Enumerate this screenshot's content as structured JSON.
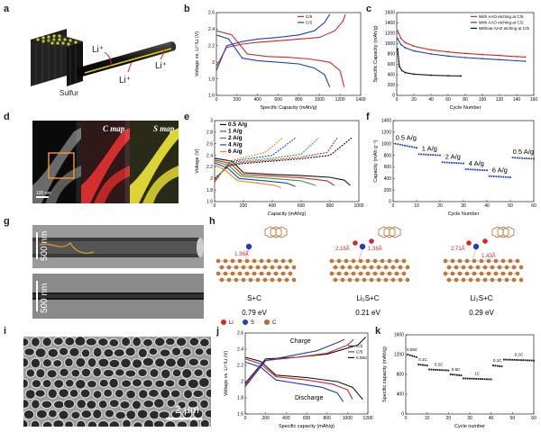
{
  "panel_letters": {
    "a": "a",
    "b": "b",
    "c": "c",
    "d": "d",
    "e": "e",
    "f": "f",
    "g": "g",
    "h": "h",
    "i": "i",
    "j": "j",
    "k": "k"
  },
  "colors": {
    "red": "#d62728",
    "blue": "#1f3fbf",
    "black": "#111111",
    "green": "#2ca02c",
    "orange": "#ff7f0e",
    "magenta": "#d62ad6",
    "brown": "#b46b2a"
  },
  "panel_a": {
    "labels": [
      "Li⁺",
      "Li⁺",
      "Li⁺",
      "Sulfur"
    ]
  },
  "panel_d": {
    "labels": [
      "C map",
      "S map"
    ],
    "scale": "100 nm"
  },
  "panel_g": {
    "scale_top": "500 nm",
    "scale_bottom": "500 nm"
  },
  "panel_h": {
    "structures": [
      {
        "name": "S+C",
        "energy": "0.79 eV",
        "bond": "",
        "bond2": ""
      },
      {
        "name": "Li₂S+C",
        "energy": "0.21 eV",
        "bond": "2.16Å",
        "bond2": "1.38Å"
      },
      {
        "name": "Li₂S+C",
        "energy": "0.29 eV",
        "bond": "2.71Å",
        "bond2": "1.43Å"
      }
    ],
    "legend": [
      "Li",
      "S",
      "C"
    ],
    "first_bond": "1.36Å"
  },
  "panel_i": {
    "scale": "2 µm"
  },
  "chart_data": [
    {
      "id": "b",
      "type": "line",
      "xlabel": "Specific Capacity (mAh/g)",
      "ylabel": "Voltage vs. Li⁺/Li (V)",
      "xlim": [
        0,
        1400
      ],
      "ylim": [
        1.6,
        2.6
      ],
      "xticks": [
        0,
        200,
        400,
        600,
        800,
        1000,
        1200,
        1400
      ],
      "yticks": [
        1.6,
        1.8,
        2.0,
        2.2,
        2.4,
        2.6
      ],
      "legend": [
        "C/5",
        "C/2"
      ],
      "series": [
        {
          "name": "C/5",
          "color": "#d62728",
          "x": [
            0,
            150,
            300,
            500,
            700,
            900,
            1100,
            1200,
            1240
          ],
          "y": [
            2.38,
            2.33,
            2.1,
            2.07,
            2.06,
            2.04,
            2.0,
            1.9,
            1.7
          ]
        },
        {
          "name": "C/5",
          "color": "#d62728",
          "x": [
            0,
            100,
            250,
            400,
            600,
            800,
            1000,
            1150,
            1230,
            1250
          ],
          "y": [
            1.95,
            2.18,
            2.22,
            2.24,
            2.26,
            2.28,
            2.3,
            2.38,
            2.5,
            2.58
          ]
        },
        {
          "name": "C/2",
          "color": "#1f3fbf",
          "x": [
            0,
            120,
            250,
            400,
            600,
            800,
            950,
            1050,
            1100
          ],
          "y": [
            2.33,
            2.28,
            2.05,
            2.02,
            2.0,
            1.98,
            1.93,
            1.85,
            1.7
          ]
        },
        {
          "name": "C/2",
          "color": "#1f3fbf",
          "x": [
            0,
            100,
            250,
            400,
            600,
            800,
            950,
            1050,
            1100
          ],
          "y": [
            1.9,
            2.2,
            2.25,
            2.28,
            2.3,
            2.33,
            2.38,
            2.48,
            2.58
          ]
        }
      ]
    },
    {
      "id": "c",
      "type": "line",
      "xlabel": "Cycle Number",
      "ylabel": "Specific Capacity (mAh/g)",
      "xlim": [
        0,
        160
      ],
      "ylim": [
        0,
        1600
      ],
      "xticks": [
        0,
        20,
        40,
        60,
        80,
        100,
        120,
        140,
        160
      ],
      "yticks": [
        0,
        200,
        400,
        600,
        800,
        1000,
        1200,
        1400,
        1600
      ],
      "legend": [
        "With AAO etching at C/5",
        "With AAO etching at C/2",
        "Without AAO etching at C/5"
      ],
      "series": [
        {
          "name": "With AAO etching at C/5",
          "color": "#d62728",
          "x": [
            1,
            5,
            10,
            20,
            40,
            60,
            80,
            100,
            120,
            140,
            150
          ],
          "y": [
            1250,
            1100,
            1020,
            950,
            880,
            840,
            810,
            790,
            770,
            750,
            740
          ]
        },
        {
          "name": "With AAO etching at C/2",
          "color": "#1f3fbf",
          "x": [
            1,
            5,
            10,
            20,
            40,
            60,
            80,
            100,
            120,
            140,
            150
          ],
          "y": [
            1100,
            980,
            920,
            860,
            800,
            760,
            730,
            710,
            690,
            670,
            660
          ]
        },
        {
          "name": "Without AAO etching at C/5",
          "color": "#111111",
          "x": [
            1,
            3,
            6,
            10,
            20,
            40,
            60,
            75
          ],
          "y": [
            900,
            560,
            480,
            440,
            410,
            390,
            380,
            375
          ]
        }
      ]
    },
    {
      "id": "e",
      "type": "line",
      "xlabel": "Capacity (mAh/g)",
      "ylabel": "Voltage (V)",
      "xlim": [
        0,
        1000
      ],
      "ylim": [
        1.6,
        3.0
      ],
      "xticks": [
        0,
        200,
        400,
        600,
        800,
        1000
      ],
      "yticks": [
        1.6,
        1.8,
        2.0,
        2.2,
        2.4,
        2.6,
        2.8,
        3.0
      ],
      "legend": [
        "0.5 A/g",
        "1 A/g",
        "2 A/g",
        "4 A/g",
        "6 A/g"
      ],
      "series": [
        {
          "name": "0.5 A/g",
          "color": "#111111",
          "x": [
            0,
            120,
            200,
            400,
            600,
            800,
            900,
            940
          ],
          "y": [
            2.35,
            2.3,
            2.1,
            2.07,
            2.05,
            2.02,
            1.97,
            1.88
          ],
          "x2": [
            0,
            100,
            200,
            400,
            600,
            800,
            950
          ],
          "y2": [
            2.0,
            2.22,
            2.26,
            2.3,
            2.34,
            2.4,
            2.7
          ]
        },
        {
          "name": "1 A/g",
          "color": "#d62728",
          "x": [
            0,
            110,
            190,
            400,
            600,
            780,
            830
          ],
          "y": [
            2.32,
            2.26,
            2.07,
            2.04,
            2.01,
            1.96,
            1.88
          ],
          "x2": [
            0,
            100,
            200,
            400,
            600,
            780,
            850
          ],
          "y2": [
            1.98,
            2.24,
            2.28,
            2.32,
            2.37,
            2.45,
            2.7
          ]
        },
        {
          "name": "2 A/g",
          "color": "#2ca02c",
          "x": [
            0,
            100,
            180,
            400,
            600,
            700
          ],
          "y": [
            2.3,
            2.22,
            2.04,
            2.0,
            1.96,
            1.88
          ],
          "x2": [
            0,
            100,
            200,
            400,
            600,
            720
          ],
          "y2": [
            1.96,
            2.26,
            2.3,
            2.35,
            2.42,
            2.7
          ]
        },
        {
          "name": "4 A/g",
          "color": "#1f3fbf",
          "x": [
            0,
            90,
            170,
            350,
            500,
            560
          ],
          "y": [
            2.27,
            2.18,
            2.0,
            1.96,
            1.92,
            1.86
          ],
          "x2": [
            0,
            100,
            200,
            400,
            560
          ],
          "y2": [
            1.94,
            2.28,
            2.33,
            2.4,
            2.7
          ]
        },
        {
          "name": "6 A/g",
          "color": "#ff7f0e",
          "x": [
            0,
            80,
            160,
            300,
            420,
            460
          ],
          "y": [
            2.24,
            2.13,
            1.96,
            1.92,
            1.88,
            1.84
          ],
          "x2": [
            0,
            100,
            200,
            350,
            470
          ],
          "y2": [
            1.92,
            2.3,
            2.36,
            2.45,
            2.7
          ]
        }
      ]
    },
    {
      "id": "f",
      "type": "scatter",
      "xlabel": "Cycle Number",
      "ylabel": "Capacity (mAh g⁻¹)",
      "xlim": [
        0,
        60
      ],
      "ylim": [
        0,
        1400
      ],
      "xticks": [
        0,
        10,
        20,
        30,
        40,
        50,
        60
      ],
      "yticks": [
        0,
        200,
        400,
        600,
        800,
        1000,
        1200,
        1400
      ],
      "labels": [
        "0.5 A/g",
        "1 A/g",
        "2 A/g",
        "4 A/g",
        "6 A/g",
        "0.5 A/g"
      ],
      "segments": [
        {
          "x0": 1,
          "x1": 10,
          "y0": 1000,
          "y1": 930
        },
        {
          "x0": 11,
          "x1": 20,
          "y0": 820,
          "y1": 800
        },
        {
          "x0": 21,
          "x1": 30,
          "y0": 680,
          "y1": 660
        },
        {
          "x0": 31,
          "x1": 40,
          "y0": 560,
          "y1": 540
        },
        {
          "x0": 41,
          "x1": 50,
          "y0": 440,
          "y1": 420
        },
        {
          "x0": 51,
          "x1": 60,
          "y0": 760,
          "y1": 740
        }
      ]
    },
    {
      "id": "j",
      "type": "line",
      "xlabel": "Specific capacity (mAh/g)",
      "ylabel": "Voltage vs. Li⁺/Li (V)",
      "xlim": [
        0,
        1200
      ],
      "ylim": [
        1.6,
        2.6
      ],
      "xticks": [
        0,
        200,
        400,
        600,
        800,
        1000,
        1200
      ],
      "yticks": [
        1.6,
        1.8,
        2.0,
        2.2,
        2.4,
        2.6
      ],
      "legend": [
        "C/2",
        "C/5",
        "0.05C"
      ],
      "annotations": [
        "Charge",
        "Discharge"
      ],
      "series": [
        {
          "name": "0.05C",
          "color": "#111111",
          "x": [
            0,
            150,
            300,
            600,
            900,
            1050,
            1150
          ],
          "y": [
            2.3,
            2.25,
            2.08,
            2.05,
            2.0,
            1.93,
            1.78
          ],
          "x2": [
            0,
            200,
            500,
            800,
            1100,
            1180
          ],
          "y2": [
            1.98,
            2.28,
            2.3,
            2.34,
            2.45,
            2.55
          ]
        },
        {
          "name": "C/5",
          "color": "#d62728",
          "x": [
            0,
            150,
            300,
            600,
            850,
            1000,
            1050
          ],
          "y": [
            2.28,
            2.22,
            2.06,
            2.02,
            1.97,
            1.9,
            1.78
          ],
          "x2": [
            0,
            200,
            500,
            800,
            1000,
            1060
          ],
          "y2": [
            1.96,
            2.26,
            2.3,
            2.35,
            2.45,
            2.52
          ]
        },
        {
          "name": "C/2",
          "color": "#1f3fbf",
          "x": [
            0,
            150,
            300,
            500,
            750,
            900,
            960
          ],
          "y": [
            2.24,
            2.18,
            2.02,
            1.98,
            1.93,
            1.86,
            1.75
          ],
          "x2": [
            0,
            200,
            450,
            700,
            900,
            970
          ],
          "y2": [
            1.94,
            2.26,
            2.32,
            2.38,
            2.48,
            2.52
          ]
        }
      ]
    },
    {
      "id": "k",
      "type": "scatter",
      "xlabel": "Cycle number",
      "ylabel": "Specific capacity (mAh/g)",
      "xlim": [
        0,
        60
      ],
      "ylim": [
        0,
        1600
      ],
      "xticks": [
        0,
        10,
        20,
        30,
        40,
        50,
        60
      ],
      "yticks": [
        0,
        400,
        800,
        1200,
        1600
      ],
      "labels": [
        "0.05C",
        "0.1C",
        "0.2C",
        "0.5C",
        "1C",
        "0.1C",
        "0.2C"
      ],
      "segments": [
        {
          "x0": 1,
          "x1": 5,
          "y0": 1200,
          "y1": 1150
        },
        {
          "x0": 6,
          "x1": 10,
          "y0": 1000,
          "y1": 980
        },
        {
          "x0": 11,
          "x1": 20,
          "y0": 900,
          "y1": 880
        },
        {
          "x0": 21,
          "x1": 26,
          "y0": 800,
          "y1": 780
        },
        {
          "x0": 27,
          "x1": 40,
          "y0": 720,
          "y1": 700
        },
        {
          "x0": 41,
          "x1": 45,
          "y0": 980,
          "y1": 960
        },
        {
          "x0": 46,
          "x1": 60,
          "y0": 1100,
          "y1": 1080
        }
      ]
    }
  ]
}
